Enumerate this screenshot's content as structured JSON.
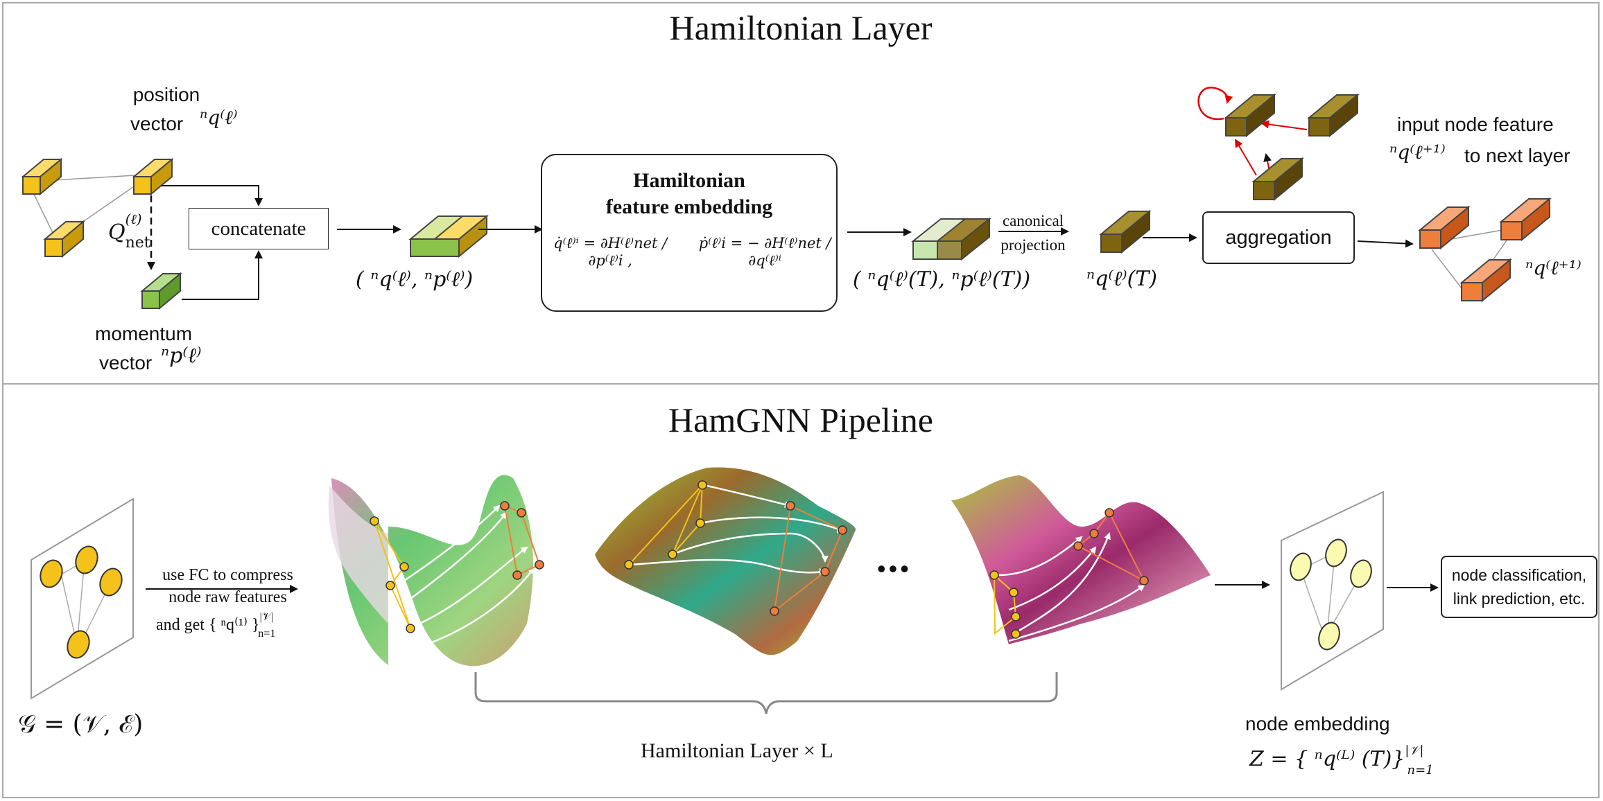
{
  "colors": {
    "gold": "#f4c21a",
    "green": "#8bc34a",
    "light_green": "#c8e6b0",
    "olive": "#7f6410",
    "orange": "#ef7d3c",
    "arrow": "#111111",
    "red": "#e00000"
  },
  "top": {
    "title": "Hamiltonian Layer",
    "position_label": "position",
    "position_label_2": "vector",
    "position_symbol": "ⁿq⁽ℓ⁾",
    "q_net": "Q",
    "q_net_sub": "net",
    "q_net_sup": "(ℓ)",
    "concatenate": "concatenate",
    "momentum_label": "momentum",
    "momentum_label_2": "vector",
    "momentum_symbol": "ⁿp⁽ℓ⁾",
    "pair_label": "( ⁿq⁽ℓ⁾, ⁿp⁽ℓ⁾)",
    "ham_box_title_1": "Hamiltonian",
    "ham_box_title_2": "feature embedding",
    "eq_left": "q̇⁽ℓ⁾ⁱ = ∂H⁽ℓ⁾net / ∂p⁽ℓ⁾i ,",
    "eq_right": "ṗ⁽ℓ⁾i = − ∂H⁽ℓ⁾net / ∂q⁽ℓ⁾ⁱ",
    "pair_T_label": "( ⁿq⁽ℓ⁾(T), ⁿp⁽ℓ⁾(T))",
    "canonical_1": "canonical",
    "canonical_2": "projection",
    "qT_label": "ⁿq⁽ℓ⁾(T)",
    "aggregation": "aggregation",
    "input_feature_1": "input node feature",
    "input_feature_2": "to next layer",
    "next_symbol": "ⁿq⁽ℓ⁺¹⁾",
    "next_symbol_2": "ⁿq⁽ℓ⁺¹⁾"
  },
  "bottom": {
    "title": "HamGNN Pipeline",
    "fc_1": "use FC to compress",
    "fc_2": "node raw features",
    "fc_3": "and get { ⁿq⁽¹⁾ }",
    "fc_3_sup": "|𝒱|",
    "fc_3_sub": "n=1",
    "graph_label": "𝒢 = (𝒱, ℰ)",
    "dots": "•••",
    "layer_times": "Hamiltonian Layer × L",
    "node_embedding": "node embedding",
    "z_label": "Z = { ⁿq⁽ᴸ⁾ (T)}",
    "z_sup": "|𝒱|",
    "z_sub": "n=1",
    "task_1": "node classification,",
    "task_2": "link prediction, etc."
  }
}
